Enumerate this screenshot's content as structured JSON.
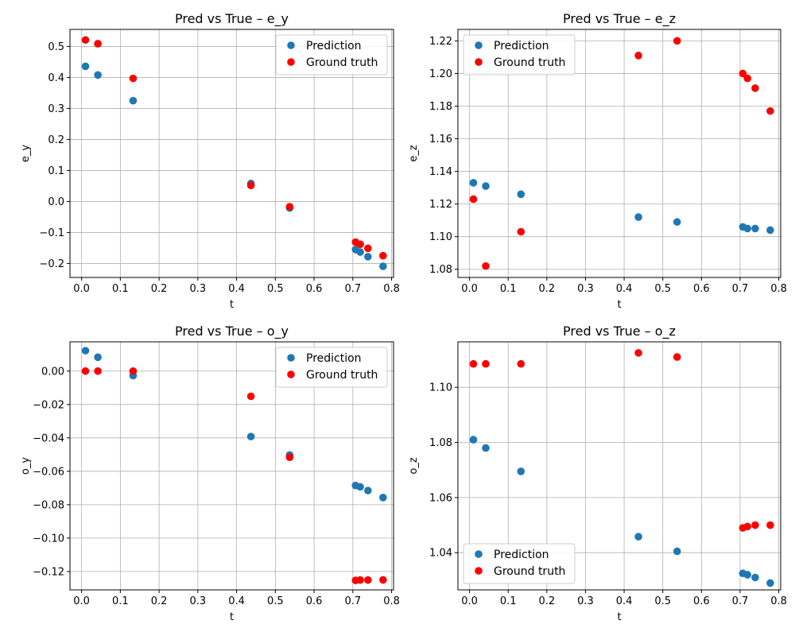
{
  "colors": {
    "prediction": "#1f77b4",
    "ground_truth": "#ff0000"
  },
  "chart_data": [
    {
      "type": "scatter",
      "title": "Pred vs True – e_y",
      "xlabel": "t",
      "ylabel": "e_y",
      "xlim": [
        -0.03,
        0.805
      ],
      "ylim": [
        -0.245,
        0.555
      ],
      "xticks": [
        0.0,
        0.1,
        0.2,
        0.3,
        0.4,
        0.5,
        0.6,
        0.7,
        0.8
      ],
      "xtick_labels": [
        "0.0",
        "0.1",
        "0.2",
        "0.3",
        "0.4",
        "0.5",
        "0.6",
        "0.7",
        "0.8"
      ],
      "yticks": [
        -0.2,
        -0.1,
        0.0,
        0.1,
        0.2,
        0.3,
        0.4,
        0.5
      ],
      "ytick_labels": [
        "−0.2",
        "−0.1",
        "0.0",
        "0.1",
        "0.2",
        "0.3",
        "0.4",
        "0.5"
      ],
      "grid": true,
      "legend": "top-right",
      "series": [
        {
          "name": "Prediction",
          "x": [
            0.01,
            0.042,
            0.133,
            0.437,
            0.537,
            0.707,
            0.719,
            0.739,
            0.778
          ],
          "y": [
            0.436,
            0.408,
            0.325,
            0.058,
            -0.021,
            -0.155,
            -0.163,
            -0.178,
            -0.209
          ]
        },
        {
          "name": "Ground truth",
          "x": [
            0.01,
            0.042,
            0.133,
            0.437,
            0.537,
            0.707,
            0.719,
            0.739,
            0.778
          ],
          "y": [
            0.521,
            0.509,
            0.397,
            0.052,
            -0.017,
            -0.131,
            -0.138,
            -0.151,
            -0.175
          ]
        }
      ]
    },
    {
      "type": "scatter",
      "title": "Pred vs True – e_z",
      "xlabel": "t",
      "ylabel": "e_z",
      "xlim": [
        -0.03,
        0.805
      ],
      "ylim": [
        1.075,
        1.227
      ],
      "xticks": [
        0.0,
        0.1,
        0.2,
        0.3,
        0.4,
        0.5,
        0.6,
        0.7,
        0.8
      ],
      "xtick_labels": [
        "0.0",
        "0.1",
        "0.2",
        "0.3",
        "0.4",
        "0.5",
        "0.6",
        "0.7",
        "0.8"
      ],
      "yticks": [
        1.08,
        1.1,
        1.12,
        1.14,
        1.16,
        1.18,
        1.2,
        1.22
      ],
      "ytick_labels": [
        "1.08",
        "1.10",
        "1.12",
        "1.14",
        "1.16",
        "1.18",
        "1.20",
        "1.22"
      ],
      "grid": true,
      "legend": "top-left",
      "series": [
        {
          "name": "Prediction",
          "x": [
            0.01,
            0.042,
            0.133,
            0.437,
            0.537,
            0.707,
            0.719,
            0.739,
            0.778
          ],
          "y": [
            1.133,
            1.131,
            1.126,
            1.112,
            1.109,
            1.106,
            1.105,
            1.105,
            1.104
          ]
        },
        {
          "name": "Ground truth",
          "x": [
            0.01,
            0.042,
            0.133,
            0.437,
            0.537,
            0.707,
            0.719,
            0.739,
            0.778
          ],
          "y": [
            1.123,
            1.082,
            1.103,
            1.211,
            1.22,
            1.2,
            1.197,
            1.191,
            1.177
          ]
        }
      ]
    },
    {
      "type": "scatter",
      "title": "Pred vs True – o_y",
      "xlabel": "t",
      "ylabel": "o_y",
      "xlim": [
        -0.03,
        0.805
      ],
      "ylim": [
        -0.131,
        0.0175
      ],
      "xticks": [
        0.0,
        0.1,
        0.2,
        0.3,
        0.4,
        0.5,
        0.6,
        0.7,
        0.8
      ],
      "xtick_labels": [
        "0.0",
        "0.1",
        "0.2",
        "0.3",
        "0.4",
        "0.5",
        "0.6",
        "0.7",
        "0.8"
      ],
      "yticks": [
        -0.12,
        -0.1,
        -0.08,
        -0.06,
        -0.04,
        -0.02,
        0.0
      ],
      "ytick_labels": [
        "−0.12",
        "−0.10",
        "−0.08",
        "−0.06",
        "−0.04",
        "−0.02",
        "0.00"
      ],
      "grid": true,
      "legend": "top-right",
      "series": [
        {
          "name": "Prediction",
          "x": [
            0.01,
            0.042,
            0.133,
            0.437,
            0.537,
            0.707,
            0.719,
            0.739,
            0.778
          ],
          "y": [
            0.0122,
            0.0083,
            -0.0027,
            -0.0392,
            -0.0502,
            -0.0685,
            -0.0693,
            -0.0715,
            -0.0757
          ]
        },
        {
          "name": "Ground truth",
          "x": [
            0.01,
            0.042,
            0.133,
            0.437,
            0.537,
            0.707,
            0.719,
            0.739,
            0.778
          ],
          "y": [
            0.0,
            0.0,
            0.0,
            -0.0151,
            -0.0516,
            -0.1253,
            -0.1251,
            -0.1251,
            -0.125
          ]
        }
      ]
    },
    {
      "type": "scatter",
      "title": "Pred vs True – o_z",
      "xlabel": "t",
      "ylabel": "o_z",
      "xlim": [
        -0.03,
        0.805
      ],
      "ylim": [
        1.0265,
        1.1165
      ],
      "xticks": [
        0.0,
        0.1,
        0.2,
        0.3,
        0.4,
        0.5,
        0.6,
        0.7,
        0.8
      ],
      "xtick_labels": [
        "0.0",
        "0.1",
        "0.2",
        "0.3",
        "0.4",
        "0.5",
        "0.6",
        "0.7",
        "0.8"
      ],
      "yticks": [
        1.04,
        1.06,
        1.08,
        1.1
      ],
      "ytick_labels": [
        "1.04",
        "1.06",
        "1.08",
        "1.10"
      ],
      "grid": true,
      "legend": "bottom-left",
      "series": [
        {
          "name": "Prediction",
          "x": [
            0.01,
            0.042,
            0.133,
            0.437,
            0.537,
            0.707,
            0.719,
            0.739,
            0.778
          ],
          "y": [
            1.081,
            1.078,
            1.0695,
            1.0458,
            1.0405,
            1.0325,
            1.032,
            1.031,
            1.029
          ]
        },
        {
          "name": "Ground truth",
          "x": [
            0.01,
            0.042,
            0.133,
            0.437,
            0.537,
            0.707,
            0.719,
            0.739,
            0.778
          ],
          "y": [
            1.1085,
            1.1085,
            1.1085,
            1.1125,
            1.111,
            1.049,
            1.0495,
            1.05,
            1.05
          ]
        }
      ]
    }
  ]
}
